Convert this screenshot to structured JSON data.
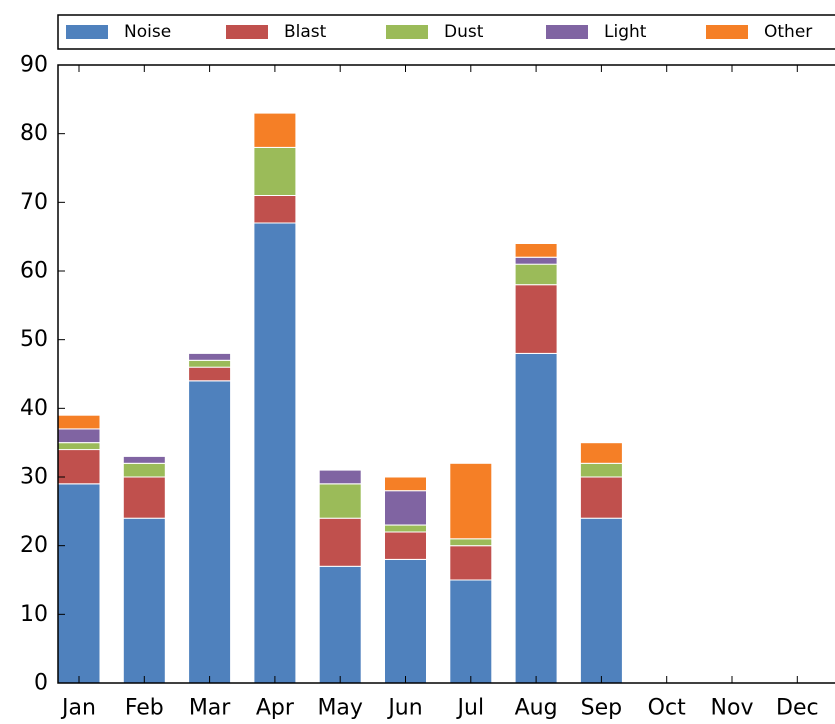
{
  "chart_data": {
    "type": "bar",
    "stacked": true,
    "title": "",
    "xlabel": "",
    "ylabel": "",
    "categories": [
      "Jan",
      "Feb",
      "Mar",
      "Apr",
      "May",
      "Jun",
      "Jul",
      "Aug",
      "Sep",
      "Oct",
      "Nov",
      "Dec"
    ],
    "ylim": [
      0,
      90
    ],
    "yticks": [
      0,
      10,
      20,
      30,
      40,
      50,
      60,
      70,
      80,
      90
    ],
    "grid": false,
    "legend_position": "top",
    "series": [
      {
        "name": "Noise",
        "color": "#4f81bd",
        "values": [
          29,
          24,
          44,
          67,
          17,
          18,
          15,
          48,
          24,
          0,
          0,
          0
        ]
      },
      {
        "name": "Blast",
        "color": "#c0504d",
        "values": [
          5,
          6,
          2,
          4,
          7,
          4,
          5,
          10,
          6,
          0,
          0,
          0
        ]
      },
      {
        "name": "Dust",
        "color": "#9bbb59",
        "values": [
          1,
          2,
          1,
          7,
          5,
          1,
          1,
          3,
          2,
          0,
          0,
          0
        ]
      },
      {
        "name": "Light",
        "color": "#8064a2",
        "values": [
          2,
          1,
          1,
          0,
          2,
          5,
          0,
          1,
          0,
          0,
          0,
          0
        ]
      },
      {
        "name": "Other",
        "color": "#f57f26",
        "values": [
          2,
          0,
          0,
          5,
          0,
          2,
          11,
          2,
          3,
          0,
          0,
          0
        ]
      }
    ]
  }
}
